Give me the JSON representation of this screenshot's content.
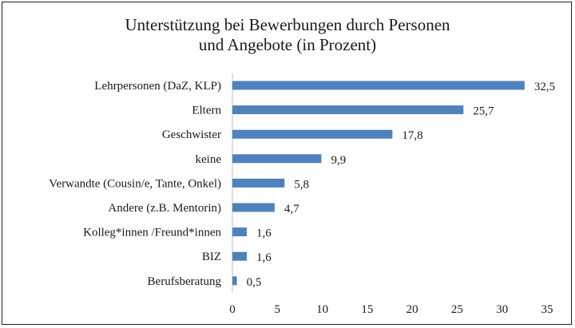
{
  "chart_data": {
    "type": "bar",
    "orientation": "horizontal",
    "title_lines": [
      "Unterstützung bei Bewerbungen durch Personen",
      "und Angebote (in Prozent)"
    ],
    "categories": [
      "Lehrpersonen (DaZ, KLP)",
      "Eltern",
      "Geschwister",
      "keine",
      "Verwandte (Cousin/e, Tante, Onkel)",
      "Andere (z.B. Mentorin)",
      "Kolleg*innen /Freund*innen",
      "BIZ",
      "Berufsberatung"
    ],
    "values": [
      32.5,
      25.7,
      17.8,
      9.9,
      5.8,
      4.7,
      1.6,
      1.6,
      0.5
    ],
    "value_labels": [
      "32,5",
      "25,7",
      "17,8",
      "9,9",
      "5,8",
      "4,7",
      "1,6",
      "1,6",
      "0,5"
    ],
    "xlim": [
      0,
      35
    ],
    "xticks": [
      0,
      5,
      10,
      15,
      20,
      25,
      30,
      35
    ],
    "bar_color": "#4f81bd",
    "grid": false,
    "legend": "none"
  }
}
